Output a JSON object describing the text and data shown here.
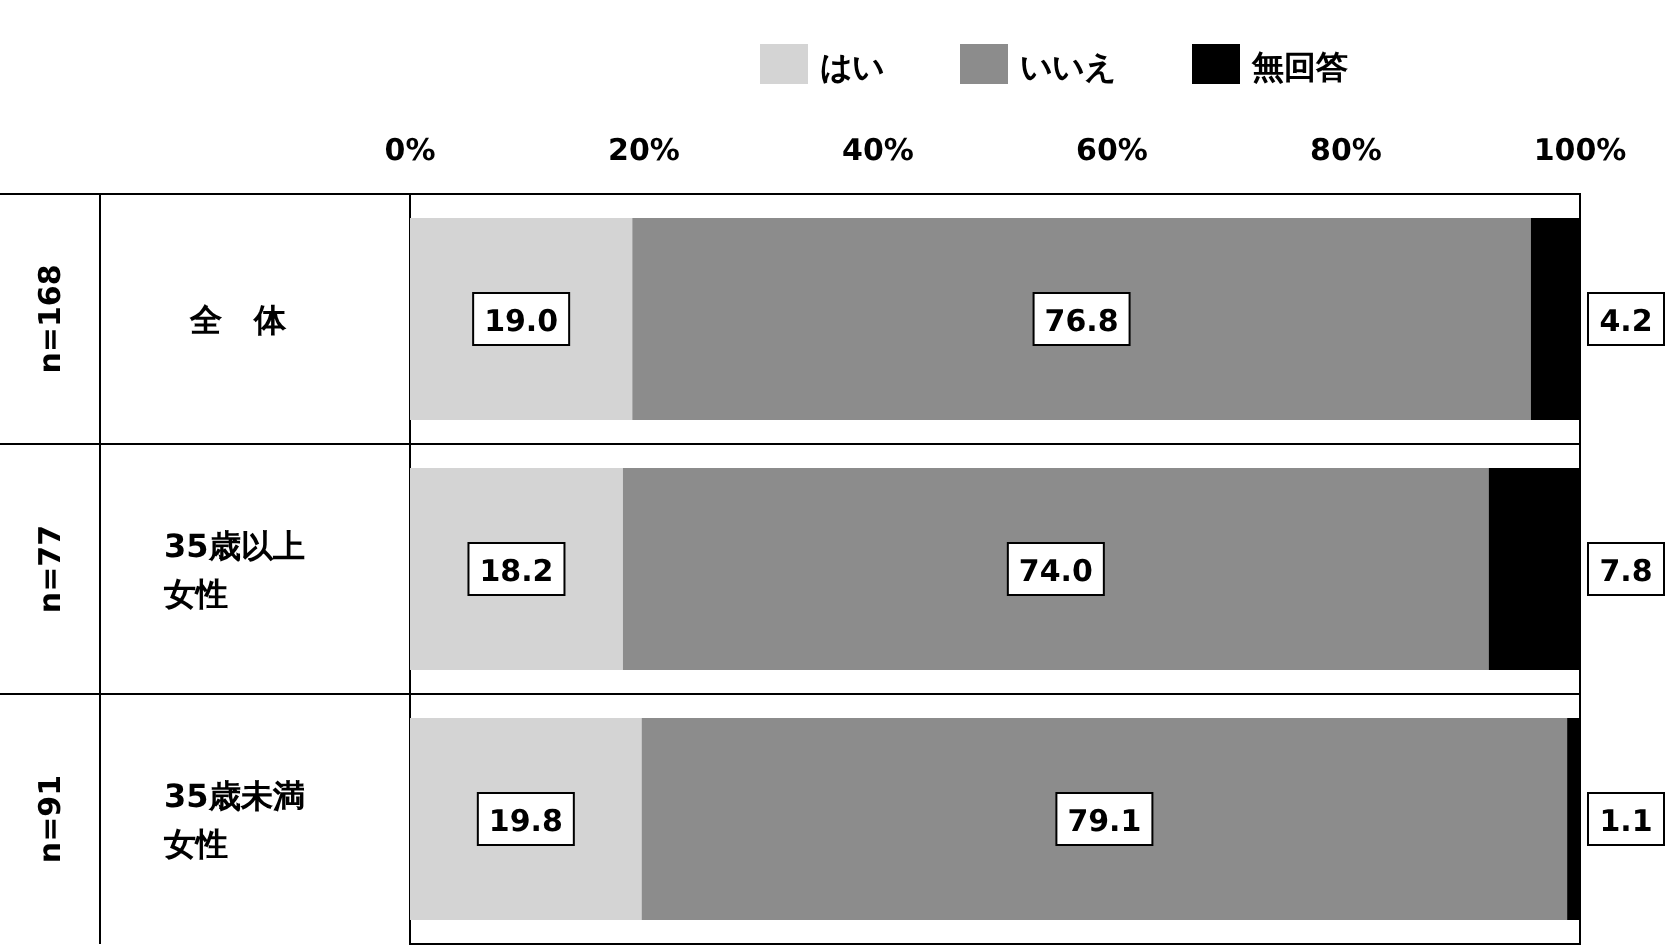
{
  "chart_data": {
    "type": "bar",
    "orientation": "horizontal",
    "stacked": true,
    "categories": [
      "全　体",
      "35歳以上女性",
      "35歳未満女性"
    ],
    "series": [
      {
        "name": "はい",
        "color": "#d4d4d4",
        "values": [
          19.0,
          18.2,
          19.8
        ],
        "value_labels": [
          "19.0",
          "18.2",
          "19.8"
        ]
      },
      {
        "name": "いいえ",
        "color": "#8c8c8c",
        "values": [
          76.8,
          74.0,
          79.1
        ],
        "value_labels": [
          "76.8",
          "74.0",
          "79.1"
        ]
      },
      {
        "name": "無回答",
        "color": "#000000",
        "values": [
          4.2,
          7.8,
          1.1
        ],
        "value_labels": [
          "4.2",
          "7.8",
          "1.1"
        ]
      }
    ],
    "annotations": [
      "n=168",
      "n=77",
      "n=91"
    ],
    "xlim": [
      0,
      100
    ],
    "xticks": [
      {
        "value": 0,
        "label": "0%"
      },
      {
        "value": 20,
        "label": "20%"
      },
      {
        "value": 40,
        "label": "40%"
      },
      {
        "value": 60,
        "label": "60%"
      },
      {
        "value": 80,
        "label": "80%"
      },
      {
        "value": 100,
        "label": "100%"
      }
    ],
    "legend": "top right"
  }
}
